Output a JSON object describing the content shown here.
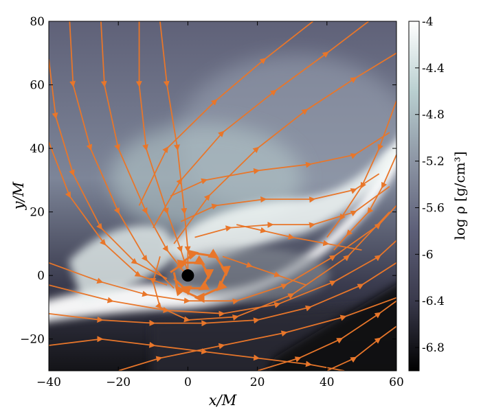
{
  "chart_data": {
    "type": "heatmap",
    "xlabel": "x/M",
    "ylabel": "y/M",
    "xlim": [
      -40,
      60
    ],
    "ylim": [
      -30,
      80
    ],
    "xticks": [
      -40,
      -20,
      0,
      20,
      40,
      60
    ],
    "yticks": [
      -20,
      0,
      20,
      40,
      60,
      80
    ],
    "x_tick_labels": [
      "−40",
      "−20",
      "0",
      "20",
      "40",
      "60"
    ],
    "y_tick_labels": [
      "−20",
      "0",
      "20",
      "40",
      "60",
      "80"
    ],
    "colorbar": {
      "label": "log ρ [g/cm³]",
      "range": [
        -7.0,
        -4.0
      ],
      "ticks": [
        -4.0,
        -4.4,
        -4.8,
        -5.2,
        -5.6,
        -6.0,
        -6.4,
        -6.8
      ],
      "tick_labels": [
        "-4",
        "-4.4",
        "-4.8",
        "-5.2",
        "-5.6",
        "-6",
        "-6.4",
        "-6.8"
      ],
      "colormap": [
        "#000000",
        "#3a3a4c",
        "#5d5f78",
        "#8c95a4",
        "#b9cfd0",
        "#ffffff"
      ]
    },
    "overlay": "streamlines",
    "streamline_color": "#e8762a",
    "black_hole": {
      "x": 0,
      "y": 0
    },
    "streamlines": [
      [
        [
          -40,
          -12
        ],
        [
          -25,
          -14
        ],
        [
          -10,
          -15
        ],
        [
          5,
          -15
        ],
        [
          20,
          -14
        ],
        [
          35,
          -10
        ],
        [
          50,
          -3
        ],
        [
          60,
          4
        ]
      ],
      [
        [
          -40,
          -3
        ],
        [
          -22,
          -8
        ],
        [
          -6,
          -11
        ],
        [
          10,
          -12
        ],
        [
          26,
          -9
        ],
        [
          42,
          -2
        ],
        [
          55,
          6
        ],
        [
          60,
          11
        ]
      ],
      [
        [
          -40,
          4
        ],
        [
          -25,
          -2
        ],
        [
          -12,
          -6
        ],
        [
          0,
          -8
        ],
        [
          14,
          -8
        ],
        [
          28,
          -3
        ],
        [
          42,
          6
        ],
        [
          55,
          16
        ],
        [
          60,
          22
        ]
      ],
      [
        [
          -34,
          80
        ],
        [
          -33,
          60
        ],
        [
          -28,
          40
        ],
        [
          -20,
          20
        ],
        [
          -12,
          5
        ],
        [
          -4,
          -4
        ]
      ],
      [
        [
          -25,
          80
        ],
        [
          -24,
          60
        ],
        [
          -20,
          40
        ],
        [
          -12,
          20
        ],
        [
          -6,
          8
        ],
        [
          -1,
          1
        ]
      ],
      [
        [
          -14,
          80
        ],
        [
          -14,
          60
        ],
        [
          -12,
          40
        ],
        [
          -6,
          20
        ],
        [
          -2,
          8
        ],
        [
          0,
          1
        ]
      ],
      [
        [
          -40,
          42
        ],
        [
          -34,
          25
        ],
        [
          -24,
          10
        ],
        [
          -14,
          0
        ],
        [
          -6,
          -3
        ]
      ],
      [
        [
          -40,
          68
        ],
        [
          -38,
          50
        ],
        [
          -33,
          32
        ],
        [
          -25,
          15
        ],
        [
          -15,
          4
        ],
        [
          -6,
          -1
        ]
      ],
      [
        [
          -8,
          80
        ],
        [
          -6,
          60
        ],
        [
          -3,
          40
        ],
        [
          -1,
          20
        ],
        [
          0,
          8
        ],
        [
          0,
          1
        ]
      ],
      [
        [
          -8,
          6
        ],
        [
          -10,
          -2
        ],
        [
          -8,
          -10
        ],
        [
          0,
          -14
        ],
        [
          14,
          -13
        ],
        [
          30,
          -6
        ],
        [
          46,
          6
        ],
        [
          58,
          20
        ]
      ],
      [
        [
          -40,
          -22
        ],
        [
          -25,
          -20
        ],
        [
          -10,
          -22
        ],
        [
          5,
          -24
        ],
        [
          20,
          -26
        ],
        [
          35,
          -28
        ],
        [
          45,
          -30
        ]
      ],
      [
        [
          -20,
          -30
        ],
        [
          -8,
          -26
        ],
        [
          10,
          -22
        ],
        [
          28,
          -18
        ],
        [
          45,
          -13
        ],
        [
          60,
          -7
        ]
      ],
      [
        [
          20,
          -30
        ],
        [
          32,
          -26
        ],
        [
          44,
          -20
        ],
        [
          55,
          -12
        ],
        [
          60,
          -8
        ]
      ],
      [
        [
          40,
          -30
        ],
        [
          48,
          -26
        ],
        [
          55,
          -20
        ],
        [
          60,
          -16
        ]
      ],
      [
        [
          60,
          55
        ],
        [
          55,
          40
        ],
        [
          50,
          28
        ],
        [
          44,
          18
        ],
        [
          40,
          12
        ]
      ],
      [
        [
          60,
          38
        ],
        [
          56,
          28
        ],
        [
          52,
          20
        ],
        [
          46,
          13
        ],
        [
          42,
          8
        ]
      ],
      [
        [
          -5,
          25
        ],
        [
          5,
          30
        ],
        [
          20,
          33
        ],
        [
          35,
          35
        ],
        [
          48,
          38
        ],
        [
          58,
          45
        ]
      ],
      [
        [
          -2,
          17
        ],
        [
          8,
          22
        ],
        [
          22,
          24
        ],
        [
          36,
          24
        ],
        [
          48,
          27
        ],
        [
          55,
          32
        ]
      ],
      [
        [
          2,
          12
        ],
        [
          12,
          15
        ],
        [
          24,
          16
        ],
        [
          36,
          16
        ],
        [
          48,
          20
        ],
        [
          58,
          28
        ]
      ],
      [
        [
          -10,
          15
        ],
        [
          -2,
          30
        ],
        [
          10,
          45
        ],
        [
          25,
          58
        ],
        [
          40,
          70
        ],
        [
          52,
          80
        ]
      ],
      [
        [
          -14,
          22
        ],
        [
          -6,
          40
        ],
        [
          8,
          55
        ],
        [
          22,
          68
        ],
        [
          36,
          80
        ]
      ],
      [
        [
          -4,
          10
        ],
        [
          6,
          25
        ],
        [
          20,
          40
        ],
        [
          34,
          52
        ],
        [
          48,
          62
        ],
        [
          60,
          70
        ]
      ],
      [
        [
          10,
          6
        ],
        [
          18,
          3
        ],
        [
          26,
          0
        ],
        [
          34,
          -3
        ]
      ],
      [
        [
          14,
          16
        ],
        [
          22,
          14
        ],
        [
          30,
          12
        ],
        [
          40,
          10
        ],
        [
          50,
          8
        ]
      ],
      [
        [
          -3,
          3
        ],
        [
          2,
          7
        ],
        [
          8,
          6
        ],
        [
          11,
          1
        ],
        [
          9,
          -4
        ],
        [
          3,
          -7
        ],
        [
          -3,
          -4
        ],
        [
          -4,
          1
        ]
      ],
      [
        [
          -5,
          1
        ],
        [
          -1,
          4
        ],
        [
          4,
          4
        ],
        [
          6,
          0
        ],
        [
          4,
          -4
        ],
        [
          -1,
          -4
        ],
        [
          -4,
          -1
        ]
      ]
    ]
  }
}
